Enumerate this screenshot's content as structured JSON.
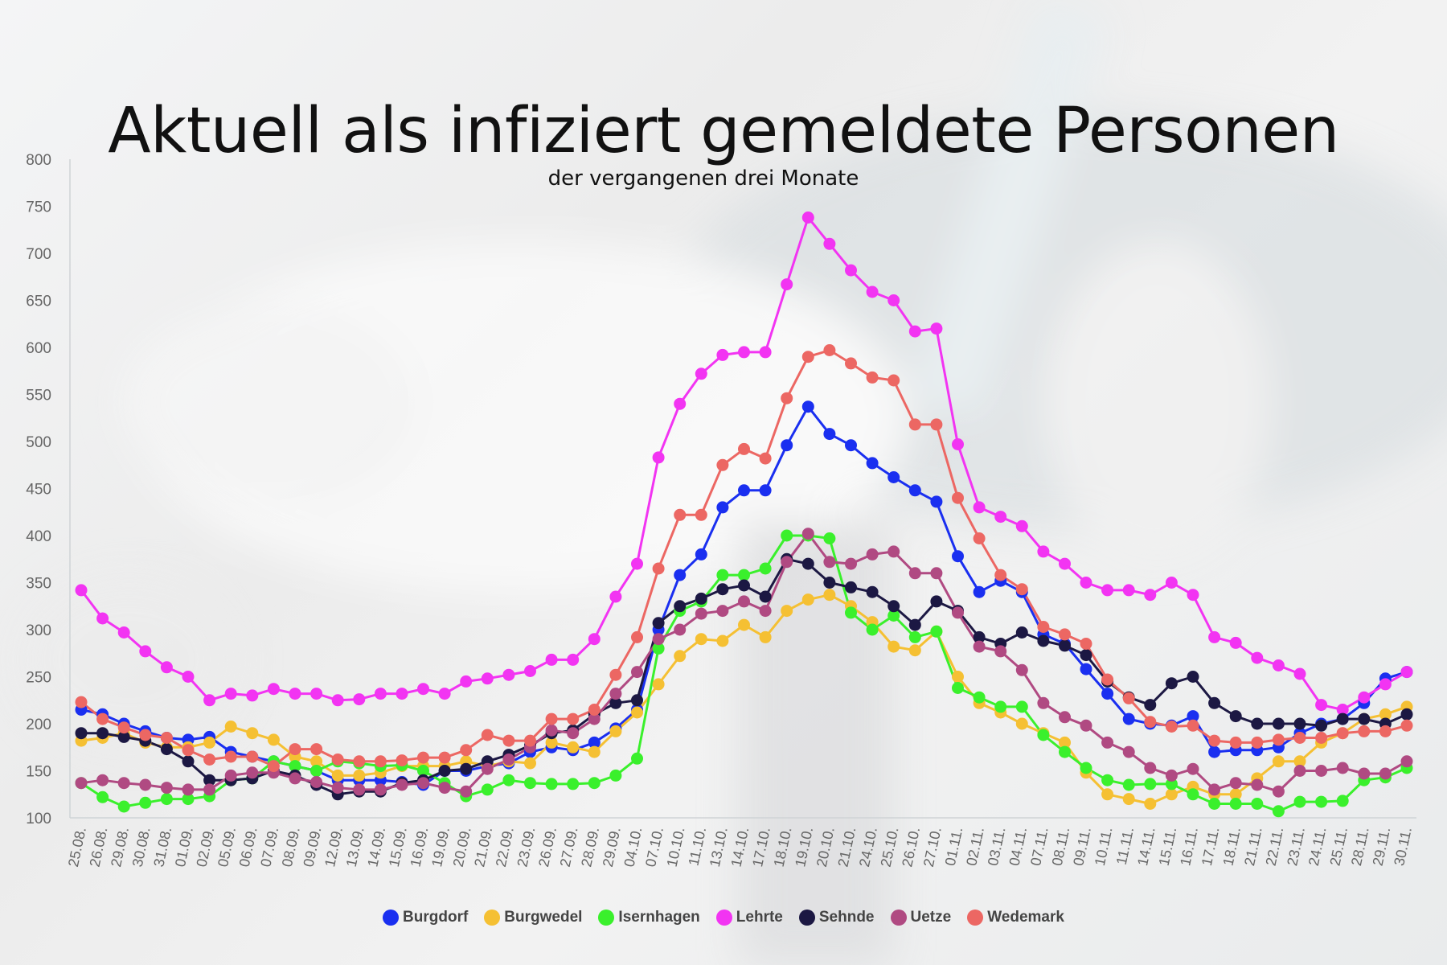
{
  "chart_data": {
    "type": "line",
    "title": "Aktuell als infiziert gemeldete Personen",
    "subtitle": "der vergangenen drei Monate",
    "xlabel": "",
    "ylabel": "",
    "ylim": [
      100,
      800
    ],
    "yticks": [
      100,
      150,
      200,
      250,
      300,
      350,
      400,
      450,
      500,
      550,
      600,
      650,
      700,
      750,
      800
    ],
    "legend_position": "bottom",
    "grid": false,
    "x": [
      "25.08.",
      "26.08.",
      "29.08.",
      "30.08.",
      "31.08.",
      "01.09.",
      "02.09.",
      "05.09.",
      "06.09.",
      "07.09.",
      "08.09.",
      "09.09.",
      "12.09.",
      "13.09.",
      "14.09.",
      "15.09.",
      "16.09.",
      "19.09.",
      "20.09.",
      "21.09.",
      "22.09.",
      "23.09.",
      "26.09.",
      "27.09.",
      "28.09.",
      "29.09.",
      "04.10.",
      "07.10.",
      "10.10.",
      "11.10.",
      "13.10.",
      "14.10.",
      "17.10.",
      "18.10.",
      "19.10.",
      "20.10.",
      "21.10.",
      "24.10.",
      "25.10.",
      "26.10.",
      "27.10.",
      "01.11.",
      "02.11.",
      "03.11.",
      "04.11.",
      "07.11.",
      "08.11.",
      "09.11.",
      "10.11.",
      "11.11.",
      "14.11.",
      "15.11.",
      "16.11.",
      "17.11.",
      "18.11.",
      "21.11.",
      "22.11.",
      "23.11.",
      "24.11.",
      "25.11.",
      "28.11.",
      "29.11.",
      "30.11."
    ],
    "series": [
      {
        "name": "Burgdorf",
        "color": "#1a2ff0",
        "values": [
          215,
          210,
          200,
          192,
          185,
          183,
          186,
          170,
          165,
          160,
          155,
          150,
          140,
          140,
          140,
          138,
          135,
          150,
          150,
          155,
          158,
          170,
          175,
          172,
          180,
          195,
          215,
          300,
          358,
          380,
          430,
          448,
          448,
          496,
          537,
          508,
          496,
          477,
          462,
          448,
          436,
          378,
          340,
          352,
          340,
          295,
          285,
          258,
          232,
          205,
          200,
          198,
          208,
          170,
          172,
          172,
          175,
          190,
          200,
          205,
          222,
          248,
          255
        ]
      },
      {
        "name": "Burgwedel",
        "color": "#f5c033",
        "values": [
          182,
          185,
          190,
          180,
          175,
          175,
          180,
          197,
          190,
          183,
          165,
          160,
          145,
          145,
          148,
          155,
          155,
          155,
          160,
          155,
          160,
          158,
          180,
          175,
          170,
          192,
          212,
          242,
          272,
          290,
          288,
          305,
          292,
          320,
          332,
          337,
          325,
          308,
          282,
          278,
          298,
          250,
          222,
          212,
          200,
          190,
          180,
          148,
          125,
          120,
          115,
          125,
          133,
          125,
          125,
          142,
          160,
          160,
          180,
          190,
          205,
          210,
          218
        ]
      },
      {
        "name": "Isernhagen",
        "color": "#3af02c",
        "values": [
          137,
          122,
          112,
          116,
          120,
          120,
          123,
          140,
          142,
          160,
          155,
          150,
          160,
          158,
          155,
          156,
          150,
          137,
          123,
          130,
          140,
          137,
          136,
          136,
          137,
          145,
          163,
          280,
          320,
          330,
          358,
          358,
          365,
          400,
          400,
          397,
          318,
          300,
          315,
          292,
          298,
          238,
          228,
          218,
          218,
          188,
          170,
          153,
          140,
          135,
          136,
          136,
          125,
          115,
          115,
          115,
          107,
          117,
          117,
          118,
          140,
          143,
          153
        ]
      },
      {
        "name": "Lehrte",
        "color": "#f234f2",
        "values": [
          342,
          312,
          297,
          277,
          260,
          250,
          225,
          232,
          230,
          237,
          232,
          232,
          225,
          226,
          232,
          232,
          237,
          232,
          245,
          248,
          252,
          256,
          268,
          268,
          290,
          335,
          370,
          483,
          540,
          572,
          592,
          595,
          595,
          667,
          738,
          710,
          682,
          659,
          650,
          617,
          620,
          497,
          430,
          420,
          410,
          383,
          370,
          350,
          342,
          342,
          337,
          350,
          337,
          292,
          286,
          270,
          262,
          253,
          220,
          215,
          228,
          242,
          255
        ]
      },
      {
        "name": "Sehnde",
        "color": "#1c1843",
        "values": [
          190,
          190,
          186,
          182,
          173,
          160,
          140,
          140,
          142,
          150,
          145,
          135,
          125,
          128,
          128,
          137,
          140,
          150,
          152,
          160,
          167,
          177,
          190,
          193,
          210,
          222,
          225,
          307,
          325,
          333,
          343,
          347,
          335,
          375,
          370,
          350,
          345,
          340,
          325,
          305,
          330,
          320,
          292,
          285,
          297,
          288,
          283,
          273,
          245,
          228,
          220,
          243,
          250,
          222,
          208,
          200,
          200,
          200,
          198,
          205,
          205,
          200,
          210
        ]
      },
      {
        "name": "Uetze",
        "color": "#b04a82",
        "values": [
          137,
          140,
          137,
          135,
          132,
          130,
          130,
          145,
          148,
          148,
          142,
          138,
          132,
          130,
          130,
          135,
          137,
          132,
          128,
          152,
          162,
          175,
          193,
          190,
          205,
          232,
          255,
          290,
          300,
          317,
          320,
          330,
          320,
          372,
          402,
          372,
          370,
          380,
          383,
          360,
          360,
          318,
          282,
          277,
          257,
          222,
          207,
          198,
          180,
          170,
          153,
          145,
          152,
          130,
          137,
          135,
          128,
          150,
          150,
          153,
          147,
          147,
          160
        ]
      },
      {
        "name": "Wedemark",
        "color": "#ec6763",
        "values": [
          223,
          205,
          196,
          188,
          185,
          172,
          162,
          165,
          165,
          155,
          173,
          173,
          162,
          160,
          160,
          161,
          164,
          164,
          172,
          188,
          182,
          182,
          205,
          205,
          215,
          252,
          292,
          365,
          422,
          422,
          475,
          492,
          482,
          546,
          590,
          597,
          583,
          568,
          565,
          518,
          518,
          440,
          397,
          358,
          343,
          303,
          295,
          285,
          247,
          227,
          202,
          197,
          198,
          182,
          180,
          180,
          183,
          185,
          185,
          190,
          192,
          192,
          198
        ]
      }
    ]
  }
}
